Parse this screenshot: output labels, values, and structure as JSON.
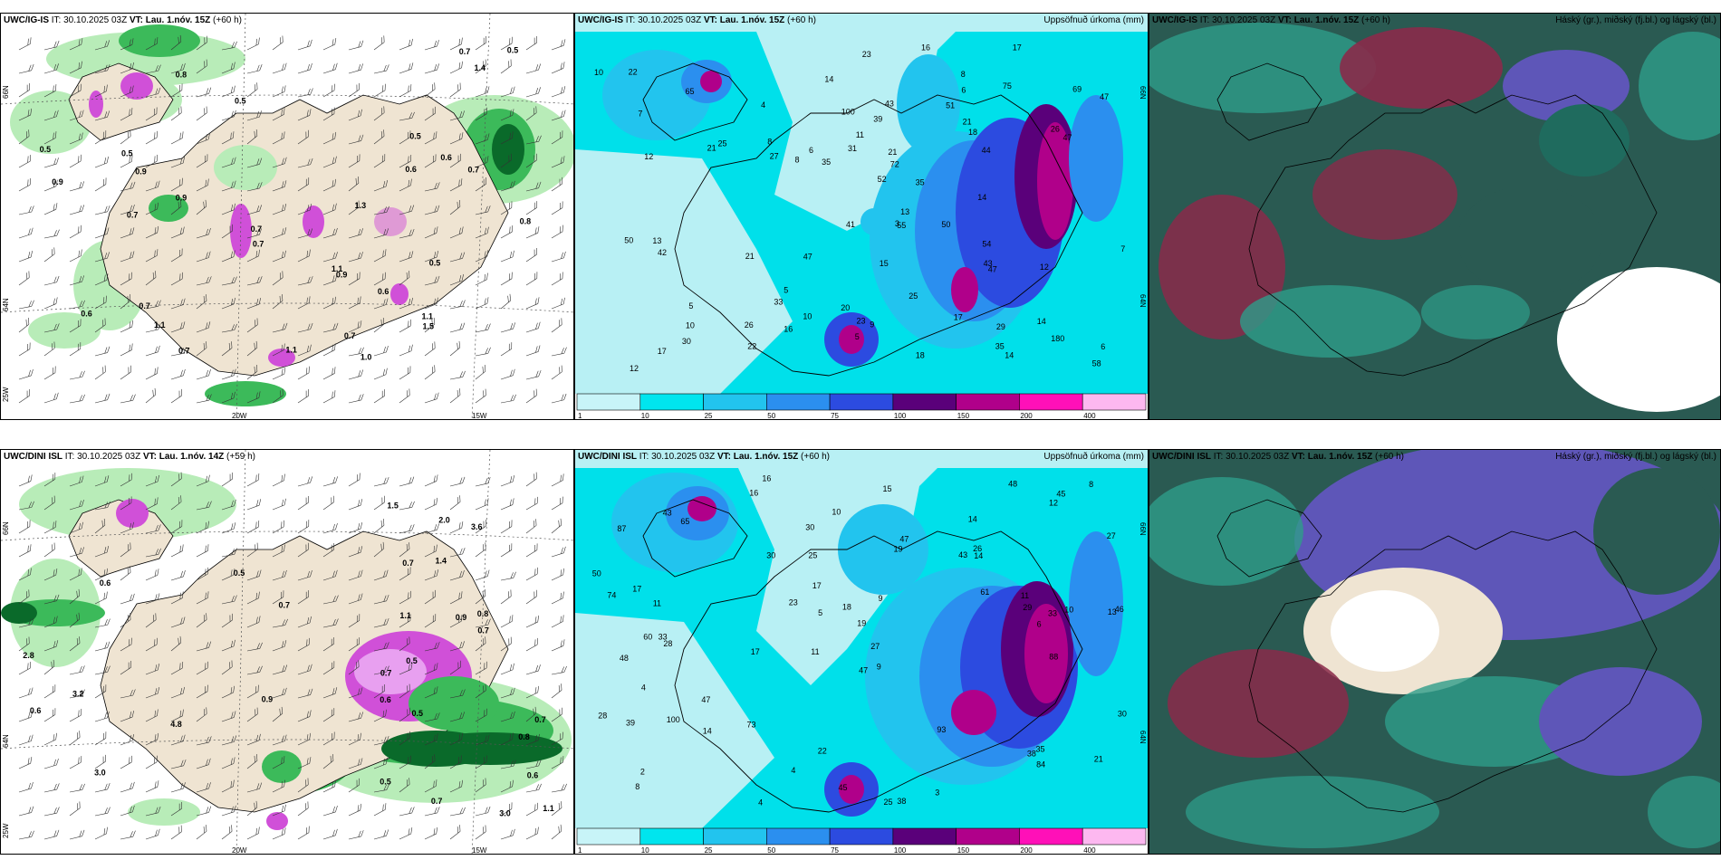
{
  "panels": {
    "top_left": {
      "model": "UWC/IG-IS",
      "it_label": "IT:",
      "it": "30.10.2025 03Z",
      "vt_label": "VT:",
      "vt": "Lau. 1.nóv. 15Z",
      "lead": "(+60 h)",
      "right_title": ""
    },
    "top_mid": {
      "model": "UWC/IG-IS",
      "it_label": "IT:",
      "it": "30.10.2025 03Z",
      "vt_label": "VT:",
      "vt": "Lau. 1.nóv. 15Z",
      "lead": "(+60 h)",
      "right_title": "Uppsöfnuð úrkoma (mm)"
    },
    "top_right": {
      "model": "UWC/IG-IS",
      "it_label": "IT:",
      "it": "30.10.2025 03Z",
      "vt_label": "VT:",
      "vt": "Lau. 1.nóv. 15Z",
      "lead": "(+60 h)",
      "right_title": "Háský (gr.), miðský (fj.bl.) og lágský (bl.)"
    },
    "bot_left": {
      "model": "UWC/DINI ISL",
      "it_label": "IT:",
      "it": "30.10.2025 03Z",
      "vt_label": "VT:",
      "vt": "Lau. 1.nóv. 14Z",
      "lead": "(+59 h)",
      "right_title": ""
    },
    "bot_mid": {
      "model": "UWC/DINI ISL",
      "it_label": "IT:",
      "it": "30.10.2025 03Z",
      "vt_label": "VT:",
      "vt": "Lau. 1.nóv. 15Z",
      "lead": "(+60 h)",
      "right_title": "Uppsöfnuð úrkoma (mm)"
    },
    "bot_right": {
      "model": "UWC/DINI ISL",
      "it_label": "IT:",
      "it": "30.10.2025 03Z",
      "vt_label": "VT:",
      "vt": "Lau. 1.nóv. 15Z",
      "lead": "(+60 h)",
      "right_title": "Háský (gr.), miðský (fj.bl.) og lágský (bl.)"
    }
  },
  "axes": {
    "lat_top": "66N",
    "lat_mid": "64N",
    "lat_bot": "25W",
    "lon_left": "20W",
    "lon_right": "15W",
    "right_lat_top": "66N",
    "right_lat_mid": "64N"
  },
  "colorbar": {
    "ticks": [
      "1",
      "10",
      "25",
      "50",
      "75",
      "100",
      "150",
      "200",
      "400"
    ],
    "colors": [
      "#c8f4f8",
      "#00e5ee",
      "#22c4ee",
      "#2b8fef",
      "#2c4be0",
      "#5a007a",
      "#b0008a",
      "#ff10b8",
      "#fdb8f0"
    ]
  },
  "colors": {
    "land": "#efe4d2",
    "sea_light": "#b8f0f4",
    "sea": "#00e0ea",
    "green_light": "#b8ecb8",
    "green_mid": "#3cba5a",
    "green_dark": "#0a6a2a",
    "magenta": "#d050d8",
    "cloud_dark": "#2a5a52",
    "cloud_teal": "#2e9c8a",
    "cloud_purple": "#5e56b8",
    "cloud_red": "#8a2a4a"
  },
  "labels": {
    "top_left": [
      "1.0",
      "0.8",
      "0.7",
      "0.5",
      "0.6",
      "0.7",
      "0.8",
      "0.9",
      "0.7",
      "1.1",
      "0.6",
      "0.5",
      "0.7",
      "1.1",
      "0.6",
      "0.7",
      "0.9",
      "1.4",
      "0.5",
      "0.7",
      "1.1",
      "0.9",
      "0.7",
      "1.5",
      "1.3",
      "0.5",
      "0.7",
      "0.9",
      "1.1",
      "0.5",
      "0.6",
      "0.5"
    ],
    "top_mid": [
      "17",
      "12",
      "13",
      "15",
      "14",
      "16",
      "14",
      "8",
      "29",
      "33",
      "58",
      "27",
      "10",
      "23",
      "17",
      "8",
      "43",
      "42",
      "41",
      "47",
      "10",
      "30",
      "5",
      "50",
      "47",
      "6",
      "6",
      "39",
      "47",
      "25",
      "180",
      "47",
      "43",
      "12",
      "3",
      "18",
      "23",
      "44",
      "12",
      "20",
      "21",
      "5",
      "4",
      "16",
      "14",
      "8",
      "11",
      "9",
      "7",
      "6",
      "7",
      "31",
      "22",
      "35",
      "5",
      "65",
      "26",
      "35",
      "35",
      "54",
      "72",
      "21",
      "18",
      "69",
      "14",
      "13",
      "17",
      "10",
      "22",
      "21",
      "25",
      "55",
      "52",
      "21",
      "26",
      "50",
      "51",
      "75",
      "100"
    ],
    "bot_left": [
      "0.6",
      "0.7",
      "0.9",
      "0.8",
      "0.5",
      "1.4",
      "0.8",
      "0.7",
      "0.6",
      "0.7",
      "0.5",
      "0.7",
      "0.6",
      "0.5",
      "4.8",
      "3.0",
      "3.6",
      "3.2",
      "2.0",
      "0.5",
      "0.9",
      "2.8",
      "1.1",
      "1.5",
      "0.7",
      "3.0",
      "0.6",
      "0.7",
      "1.1"
    ],
    "bot_mid": [
      "16",
      "14",
      "13",
      "11",
      "9",
      "33",
      "87",
      "43",
      "48",
      "19",
      "19",
      "8",
      "16",
      "17",
      "25",
      "38",
      "22",
      "48",
      "61",
      "47",
      "11",
      "60",
      "46",
      "10",
      "28",
      "17",
      "5",
      "29",
      "35",
      "39",
      "38",
      "47",
      "100",
      "23",
      "93",
      "30",
      "11",
      "4",
      "8",
      "10",
      "2",
      "4",
      "3",
      "43",
      "45",
      "14",
      "84",
      "26",
      "50",
      "27",
      "30",
      "6",
      "9",
      "12",
      "15",
      "14",
      "17",
      "18",
      "45",
      "25",
      "21",
      "88",
      "65",
      "73",
      "47",
      "74",
      "33",
      "28",
      "30",
      "27",
      "4"
    ],
    "top_left_n": "1.0",
    "cb_unit": ""
  }
}
